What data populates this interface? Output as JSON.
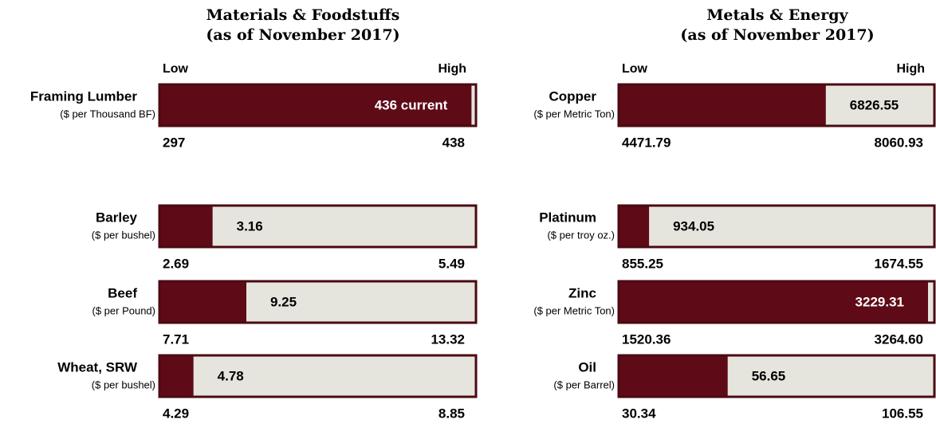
{
  "chart_data": [
    {
      "type": "range",
      "title": "Materials & Foodstuffs",
      "subtitle": "(as of November 2017)",
      "low_label": "Low",
      "high_label": "High",
      "categories": [
        "Framing Lumber",
        "Barley",
        "Beef",
        "Wheat, SRW"
      ],
      "units": [
        "($ per Thousand BF)",
        "($ per bushel)",
        "($ per Pound)",
        "($ per bushel)"
      ],
      "lows": [
        297,
        2.69,
        7.71,
        4.29
      ],
      "highs": [
        438,
        5.49,
        13.32,
        8.85
      ],
      "values": [
        436,
        3.16,
        9.25,
        4.78
      ],
      "value_labels": [
        "436 current",
        "3.16",
        "9.25",
        "4.78"
      ],
      "color": "#5e0a17",
      "track_color": "#e6e5dd"
    },
    {
      "type": "range",
      "title": "Metals & Energy",
      "subtitle": "(as of November 2017)",
      "low_label": "Low",
      "high_label": "High",
      "categories": [
        "Copper",
        "Platinum",
        "Zinc",
        "Oil"
      ],
      "units": [
        "($ per Metric Ton)",
        "($ per troy oz.)",
        "($ per Metric Ton)",
        "($ per Barrel)"
      ],
      "lows": [
        4471.79,
        855.25,
        1520.36,
        30.34
      ],
      "highs": [
        8060.93,
        1674.55,
        {
          "value": 3264.6,
          "label": "3264.60"
        },
        106.55
      ],
      "values": [
        6826.55,
        934.05,
        3229.31,
        56.65
      ],
      "color": "#5e0a17",
      "track_color": "#e6e5dd"
    }
  ]
}
